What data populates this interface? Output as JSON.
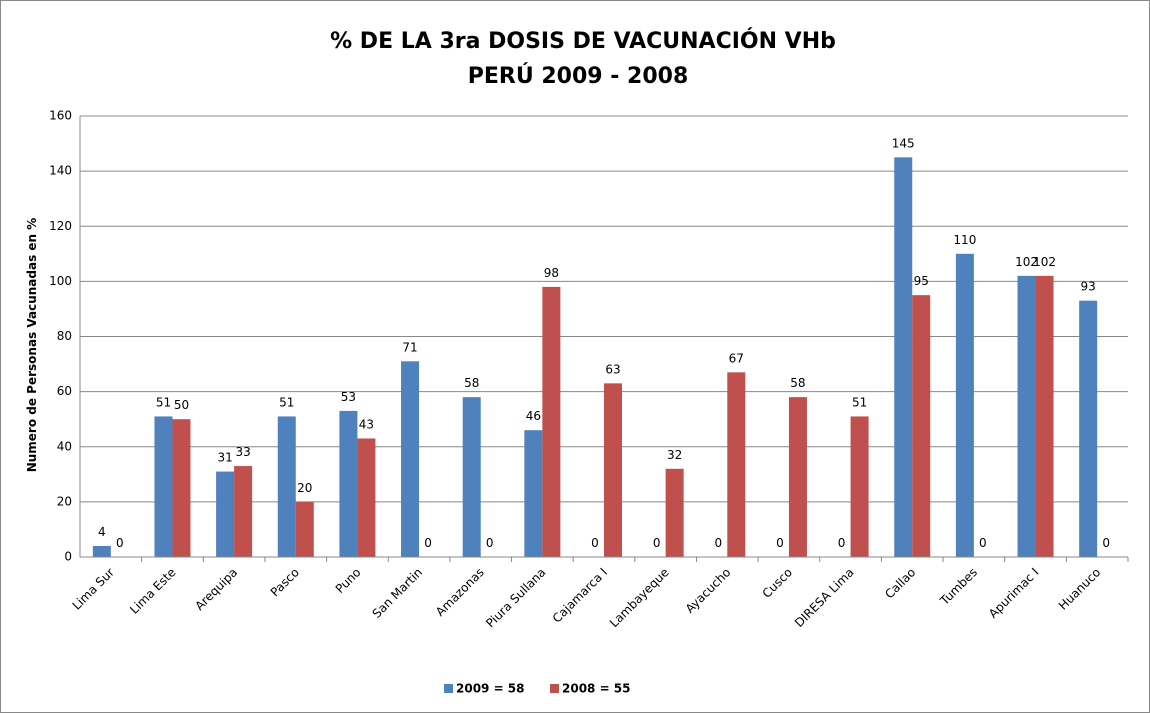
{
  "chart_data": {
    "type": "bar",
    "title": "% DE LA 3ra DOSIS DE VACUNACIÓN VHb",
    "subtitle": "PERÚ 2009 - 2008",
    "y_label": "Numero de Personas Vacunadas en %",
    "categories": [
      "Lima Sur",
      "Lima Este",
      "Arequipa",
      "Pasco",
      "Puno",
      "San Martin",
      "Amazonas",
      "Piura Sullana",
      "Cajamarca I",
      "Lambayeque",
      "Ayacucho",
      "Cusco",
      "DIRESA Lima",
      "Callao",
      "Tumbes",
      "Apurimac I",
      "Huanuco"
    ],
    "series": [
      {
        "name": "2009 = 58",
        "color": "#4f81bd",
        "values": [
          4,
          51,
          31,
          51,
          53,
          71,
          58,
          46,
          0,
          0,
          0,
          0,
          0,
          145,
          110,
          102,
          93
        ]
      },
      {
        "name": "2008 = 55",
        "color": "#c0504d",
        "values": [
          0,
          50,
          33,
          20,
          43,
          0,
          0,
          98,
          63,
          32,
          67,
          58,
          51,
          95,
          0,
          102,
          0
        ]
      }
    ],
    "ylim": [
      0,
      160
    ],
    "yticks": [
      0,
      20,
      40,
      60,
      80,
      100,
      120,
      140,
      160
    ],
    "grid": true,
    "legend": "bottom"
  }
}
